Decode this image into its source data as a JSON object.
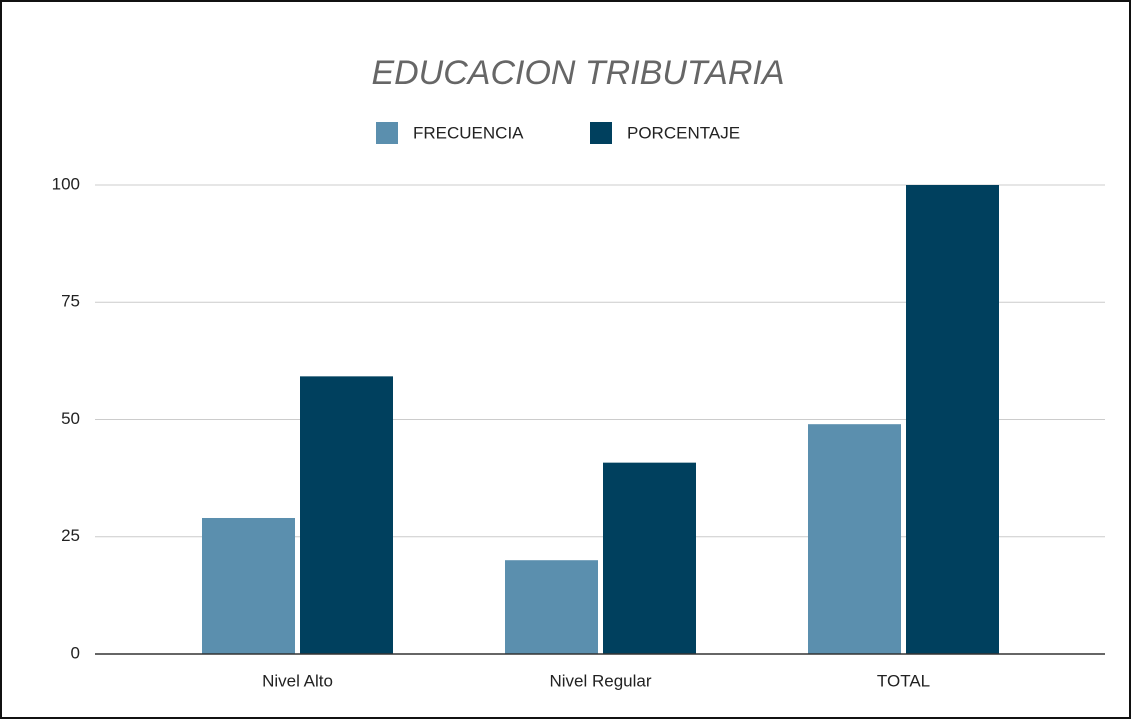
{
  "chart_data": {
    "type": "bar",
    "title": "EDUCACION TRIBUTARIA",
    "categories": [
      "Nivel Alto",
      "Nivel Regular",
      "TOTAL"
    ],
    "series": [
      {
        "name": "FRECUENCIA",
        "color": "#5b8fae",
        "values": [
          29,
          20,
          49
        ]
      },
      {
        "name": "PORCENTAJE",
        "color": "#00405e",
        "values": [
          59.2,
          40.8,
          100
        ]
      }
    ],
    "ylim": [
      0,
      100
    ],
    "yticks": [
      0,
      25,
      50,
      75,
      100
    ],
    "grid": true,
    "legend": "top"
  }
}
